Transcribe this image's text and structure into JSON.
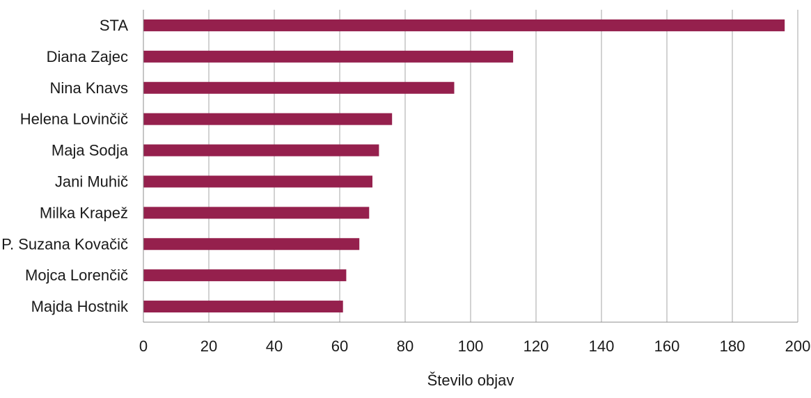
{
  "chart_data": {
    "type": "bar",
    "orientation": "horizontal",
    "categories": [
      "STA",
      "Diana Zajec",
      "Nina Knavs",
      "Helena Lovinčič",
      "Maja Sodja",
      "Jani Muhič",
      "Milka Krapež",
      "P. Suzana Kovačič",
      "Mojca Lorenčič",
      "Majda Hostnik"
    ],
    "values": [
      196,
      113,
      95,
      76,
      72,
      70,
      69,
      66,
      62,
      61
    ],
    "title": "",
    "xlabel": "Število objav",
    "ylabel": "",
    "xlim": [
      0,
      200
    ],
    "xticks": [
      0,
      20,
      40,
      60,
      80,
      100,
      120,
      140,
      160,
      180,
      200
    ],
    "xtick_labels": [
      "0",
      "20",
      "40",
      "60",
      "80",
      "100",
      "120",
      "140",
      "160",
      "180",
      "200"
    ],
    "grid": "vertical",
    "legend": "none",
    "bar_color": "#95204d"
  }
}
